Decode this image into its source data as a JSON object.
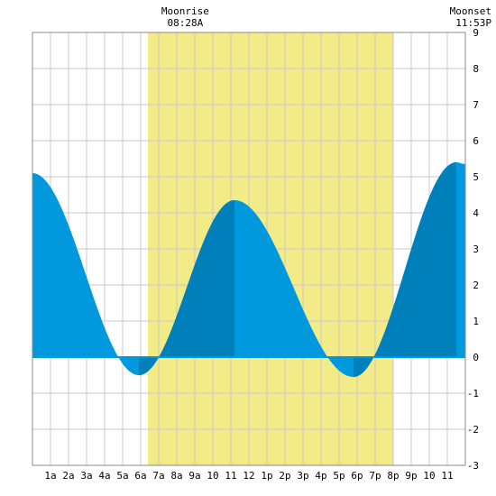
{
  "chart_data": {
    "type": "area",
    "x_unit": "hour of day",
    "x_range": [
      0,
      24
    ],
    "y_range": [
      -3,
      9
    ],
    "grid": true,
    "x_ticks": [
      {
        "h": 1,
        "label": "1a"
      },
      {
        "h": 2,
        "label": "2a"
      },
      {
        "h": 3,
        "label": "3a"
      },
      {
        "h": 4,
        "label": "4a"
      },
      {
        "h": 5,
        "label": "5a"
      },
      {
        "h": 6,
        "label": "6a"
      },
      {
        "h": 7,
        "label": "7a"
      },
      {
        "h": 8,
        "label": "8a"
      },
      {
        "h": 9,
        "label": "9a"
      },
      {
        "h": 10,
        "label": "10"
      },
      {
        "h": 11,
        "label": "11"
      },
      {
        "h": 12,
        "label": "12"
      },
      {
        "h": 13,
        "label": "1p"
      },
      {
        "h": 14,
        "label": "2p"
      },
      {
        "h": 15,
        "label": "3p"
      },
      {
        "h": 16,
        "label": "4p"
      },
      {
        "h": 17,
        "label": "5p"
      },
      {
        "h": 18,
        "label": "6p"
      },
      {
        "h": 19,
        "label": "7p"
      },
      {
        "h": 20,
        "label": "8p"
      },
      {
        "h": 21,
        "label": "9p"
      },
      {
        "h": 22,
        "label": "10"
      },
      {
        "h": 23,
        "label": "11"
      }
    ],
    "y_ticks": [
      -3,
      -2,
      -1,
      0,
      1,
      2,
      3,
      4,
      5,
      6,
      7,
      8,
      9
    ],
    "daylight": {
      "start": 6.4,
      "end": 20.0,
      "color": "#f2eb88"
    },
    "moon": [
      {
        "title": "Moonrise",
        "time": "08:28A",
        "h": 8.47,
        "anchor": "middle"
      },
      {
        "title": "Moonset",
        "time": "11:53P",
        "h": 23.88,
        "anchor": "end"
      }
    ],
    "extremes": [
      {
        "h": 0.0,
        "v": 5.1
      },
      {
        "h": 5.9,
        "v": -0.5
      },
      {
        "h": 11.2,
        "v": 4.35
      },
      {
        "h": 17.8,
        "v": -0.55
      },
      {
        "h": 23.5,
        "v": 5.4
      },
      {
        "h": 24.0,
        "v": 5.35
      }
    ],
    "dark_bands": [
      {
        "start": 5.9,
        "end": 11.2
      },
      {
        "start": 17.8,
        "end": 23.5
      }
    ],
    "colors": {
      "tide": "#0099dd",
      "tide_dark": "#0080bb",
      "grid": "#c8c8c8"
    }
  }
}
